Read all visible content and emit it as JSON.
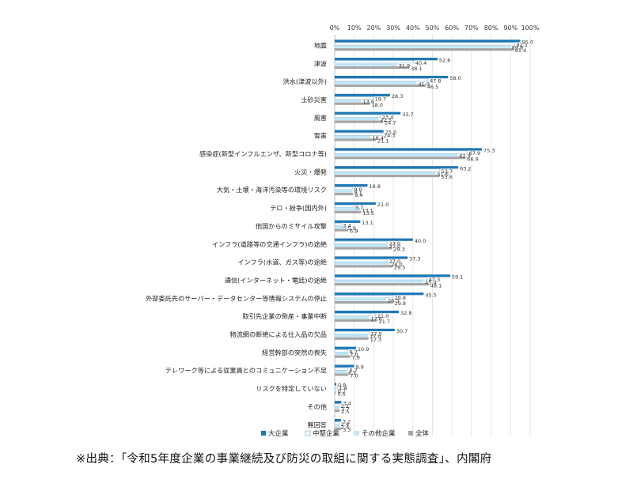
{
  "chart_data": {
    "type": "bar",
    "orientation": "horizontal",
    "xlim": [
      0,
      100
    ],
    "x_ticks": [
      "0%",
      "10%",
      "20%",
      "30%",
      "40%",
      "50%",
      "60%",
      "70%",
      "80%",
      "90%",
      "100%"
    ],
    "legend_position": "bottom",
    "grid": true,
    "categories": [
      "地震",
      "津波",
      "洪水(津波以外)",
      "土砂災害",
      "風害",
      "雪害",
      "感染症(新型インフルエンザ、新型コロナ等)",
      "火災・爆発",
      "大気・土壌・海洋汚染等の環境リスク",
      "テロ・紛争(国内外)",
      "他国からのミサイル攻撃",
      "インフラ(道路等の交通インフラ)の途絶",
      "インフラ(水道、ガス等)の途絶",
      "通信(インターネット・電話)の途絶",
      "外部委託先のサーバー・データセンター等情報システムの停止",
      "取引先企業の倒産・事業中断",
      "物流網の断絶による仕入品の欠品",
      "経営幹部の突然の喪失",
      "テレワーク等による従業員とのコミュニケーション不足",
      "リスクを特定していない",
      "その他",
      "無回答"
    ],
    "series": [
      {
        "name": "大企業",
        "color": "#1f77b4",
        "values": [
          95.0,
          52.6,
          58.0,
          28.3,
          33.7,
          25.0,
          75.3,
          63.2,
          16.8,
          21.0,
          13.1,
          40.0,
          37.3,
          59.1,
          45.5,
          32.8,
          30.7,
          10.9,
          9.9,
          0.8,
          3.4,
          3.2
        ]
      },
      {
        "name": "中堅企業",
        "color": "#ffffff",
        "values": [
          92.1,
          40.4,
          47.8,
          19.7,
          23.4,
          24.3,
          67.9,
          53.7,
          9.0,
          9.7,
          3.4,
          27.0,
          27.0,
          47.3,
          29.8,
          21.0,
          17.5,
          6.7,
          6.7,
          1.4,
          2.2,
          2.4
        ]
      },
      {
        "name": "その他企業",
        "color": "#bfe6f7",
        "values": [
          89.8,
          31.9,
          41.9,
          13.6,
          22.5,
          18.4,
          62.9,
          51.6,
          9.1,
          13.1,
          5.9,
          27.0,
          28.0,
          45.4,
          26.3,
          17.6,
          17.0,
          7.0,
          6.1,
          0.7,
          2.7,
          2.4
        ]
      },
      {
        "name": "全体",
        "color": "#a6a6a6",
        "values": [
          91.4,
          38.1,
          46.5,
          18.0,
          24.7,
          21.1,
          66.9,
          53.6,
          9.4,
          13.5,
          6.9,
          29.3,
          29.5,
          48.1,
          29.8,
          21.7,
          17.3,
          7.9,
          7.0,
          0.6,
          2.5,
          3.3
        ]
      }
    ]
  },
  "footer": {
    "source": "※出典：「令和5年度企業の事業継続及び防災の取組に関する実態調査」、内閣府"
  }
}
